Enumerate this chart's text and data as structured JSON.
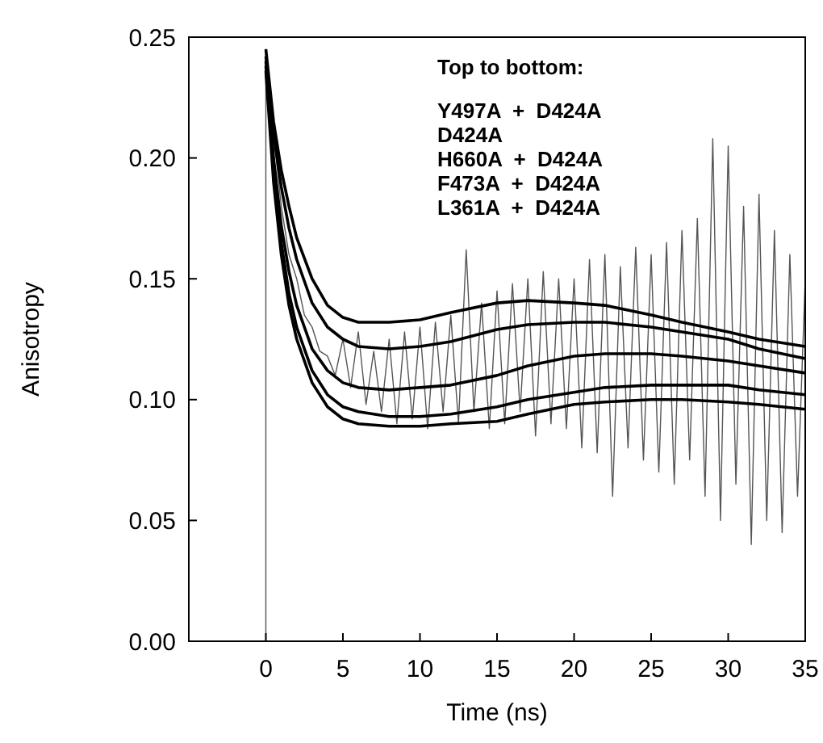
{
  "chart_data": {
    "type": "line",
    "xlabel": "Time (ns)",
    "ylabel": "Anisotropy",
    "xlim": [
      -5,
      35
    ],
    "xticks": [
      0,
      5,
      10,
      15,
      20,
      25,
      30,
      35
    ],
    "ylim": [
      0,
      0.25
    ],
    "yticks": [
      {
        "value": 0,
        "label": "0.00"
      },
      {
        "value": 0.05,
        "label": "0.05"
      },
      {
        "value": 0.1,
        "label": "0.10"
      },
      {
        "value": 0.15,
        "label": "0.15"
      },
      {
        "value": 0.2,
        "label": "0.20"
      },
      {
        "value": 0.25,
        "label": "0.25"
      }
    ],
    "grid": false,
    "marker": "none",
    "line_style": "solid",
    "annotations": [
      "Top to bottom:",
      "Y497A  +  D424A",
      "D424A",
      "H660A  +  D424A",
      "F473A  +  D424A",
      "L361A  +  D424A"
    ],
    "series": [
      {
        "color": "#555555",
        "x": [
          0,
          0,
          0.5,
          1,
          1.5,
          2,
          2.5,
          3,
          3.5,
          4,
          4.5,
          5,
          5.5,
          6,
          6.5,
          7,
          7.5,
          8,
          8.5,
          9,
          9.5,
          10,
          10.5,
          11,
          11.5,
          12,
          12.5,
          13,
          13.5,
          14,
          14.5,
          15,
          15.5,
          16,
          16.5,
          17,
          17.5,
          18,
          18.5,
          19,
          19.5,
          20,
          20.5,
          21,
          21.5,
          22,
          22.5,
          23,
          23.5,
          24,
          24.5,
          25,
          25.5,
          26,
          26.5,
          27,
          27.5,
          28,
          28.5,
          29,
          29.5,
          30,
          30.5,
          31,
          31.5,
          32,
          32.5,
          33,
          33.5,
          34,
          34.5,
          35
        ],
        "values": [
          0,
          0.245,
          0.21,
          0.18,
          0.16,
          0.15,
          0.135,
          0.13,
          0.12,
          0.118,
          0.11,
          0.125,
          0.105,
          0.128,
          0.098,
          0.12,
          0.095,
          0.125,
          0.09,
          0.128,
          0.092,
          0.13,
          0.088,
          0.132,
          0.095,
          0.135,
          0.09,
          0.162,
          0.095,
          0.14,
          0.088,
          0.145,
          0.09,
          0.148,
          0.095,
          0.15,
          0.085,
          0.153,
          0.09,
          0.15,
          0.088,
          0.15,
          0.08,
          0.158,
          0.078,
          0.16,
          0.06,
          0.155,
          0.08,
          0.163,
          0.075,
          0.16,
          0.07,
          0.165,
          0.065,
          0.17,
          0.075,
          0.175,
          0.06,
          0.208,
          0.05,
          0.205,
          0.065,
          0.18,
          0.04,
          0.185,
          0.05,
          0.17,
          0.045,
          0.16,
          0.06,
          0.15
        ]
      },
      {
        "color": "#000000",
        "x": [
          0,
          0.5,
          1,
          1.5,
          2,
          3,
          4,
          5,
          6,
          8,
          10,
          12,
          15,
          17,
          20,
          22,
          25,
          27,
          30,
          32,
          35
        ],
        "values": [
          0.245,
          0.215,
          0.195,
          0.18,
          0.167,
          0.15,
          0.139,
          0.134,
          0.132,
          0.132,
          0.133,
          0.136,
          0.14,
          0.141,
          0.14,
          0.139,
          0.135,
          0.132,
          0.128,
          0.125,
          0.122
        ]
      },
      {
        "color": "#000000",
        "x": [
          0,
          0.5,
          1,
          1.5,
          2,
          3,
          4,
          5,
          6,
          8,
          10,
          12,
          15,
          17,
          20,
          22,
          25,
          27,
          30,
          32,
          35
        ],
        "values": [
          0.242,
          0.21,
          0.188,
          0.171,
          0.158,
          0.14,
          0.13,
          0.125,
          0.122,
          0.121,
          0.122,
          0.124,
          0.129,
          0.131,
          0.132,
          0.132,
          0.13,
          0.128,
          0.125,
          0.121,
          0.117
        ]
      },
      {
        "color": "#000000",
        "x": [
          0,
          0.5,
          1,
          1.5,
          2,
          3,
          4,
          5,
          6,
          8,
          10,
          12,
          15,
          17,
          20,
          22,
          25,
          27,
          30,
          32,
          35
        ],
        "values": [
          0.24,
          0.2,
          0.172,
          0.153,
          0.139,
          0.121,
          0.112,
          0.107,
          0.105,
          0.104,
          0.105,
          0.106,
          0.11,
          0.114,
          0.118,
          0.119,
          0.119,
          0.118,
          0.116,
          0.114,
          0.111
        ]
      },
      {
        "color": "#000000",
        "x": [
          0,
          0.5,
          1,
          1.5,
          2,
          3,
          4,
          5,
          6,
          8,
          10,
          12,
          15,
          17,
          20,
          22,
          25,
          27,
          30,
          32,
          35
        ],
        "values": [
          0.238,
          0.195,
          0.165,
          0.144,
          0.13,
          0.112,
          0.102,
          0.097,
          0.095,
          0.093,
          0.093,
          0.094,
          0.097,
          0.1,
          0.103,
          0.105,
          0.106,
          0.106,
          0.106,
          0.104,
          0.102
        ]
      },
      {
        "color": "#000000",
        "x": [
          0,
          0.5,
          1,
          1.5,
          2,
          3,
          4,
          5,
          6,
          8,
          10,
          12,
          15,
          17,
          20,
          22,
          25,
          27,
          30,
          32,
          35
        ],
        "values": [
          0.236,
          0.19,
          0.16,
          0.139,
          0.125,
          0.107,
          0.097,
          0.092,
          0.09,
          0.089,
          0.089,
          0.09,
          0.091,
          0.094,
          0.098,
          0.099,
          0.1,
          0.1,
          0.099,
          0.098,
          0.096
        ]
      }
    ]
  }
}
